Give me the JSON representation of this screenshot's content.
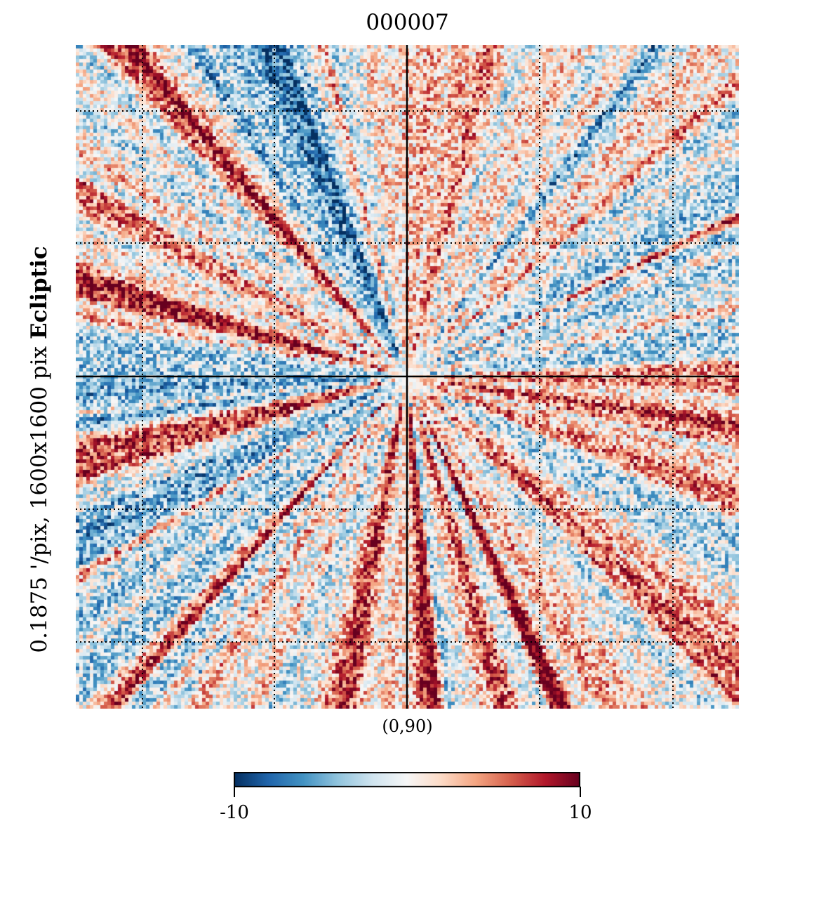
{
  "chart_data": {
    "type": "heatmap",
    "projection": "gnomonic",
    "title": "000007",
    "coord_system": "Ecliptic",
    "resolution_label": "0.1875 '/pix,   1600x1600 pix",
    "center_label": "(0,90)",
    "colormap": "RdBu_r",
    "vmin": -10,
    "vmax": 10,
    "colorbar_ticks": [
      "-10",
      "10"
    ],
    "graticule": "dotted",
    "pattern": "radial streaks converging on the map center; red (positive) and blue (negative) alternating bands"
  },
  "colors": {
    "cmap": [
      "#053061",
      "#2166ac",
      "#4393c3",
      "#92c5de",
      "#d1e5f0",
      "#f7f7f7",
      "#fddbc7",
      "#f4a582",
      "#d6604d",
      "#b2182b",
      "#67001f"
    ],
    "axis": "#000000"
  }
}
